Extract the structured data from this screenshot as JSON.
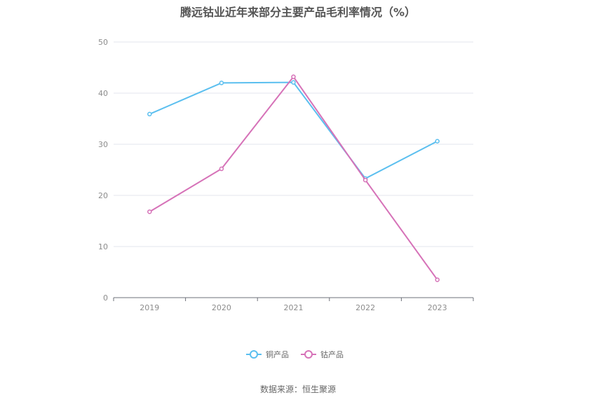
{
  "chart_data": {
    "type": "line",
    "title": "腾远钴业近年来部分主要产品毛利率情况（%）",
    "categories": [
      "2019",
      "2020",
      "2021",
      "2022",
      "2023"
    ],
    "ylim": [
      0,
      50
    ],
    "yticks": [
      0,
      10,
      20,
      30,
      40,
      50
    ],
    "grid": true,
    "legend_position": "bottom-center",
    "series": [
      {
        "name": "铜产品",
        "color": "#5bbfef",
        "values": [
          35.9,
          42.0,
          42.1,
          23.3,
          30.6
        ]
      },
      {
        "name": "钴产品",
        "color": "#d672b8",
        "values": [
          16.8,
          25.2,
          43.2,
          23.0,
          3.5
        ]
      }
    ],
    "source": "数据来源：恒生聚源"
  }
}
